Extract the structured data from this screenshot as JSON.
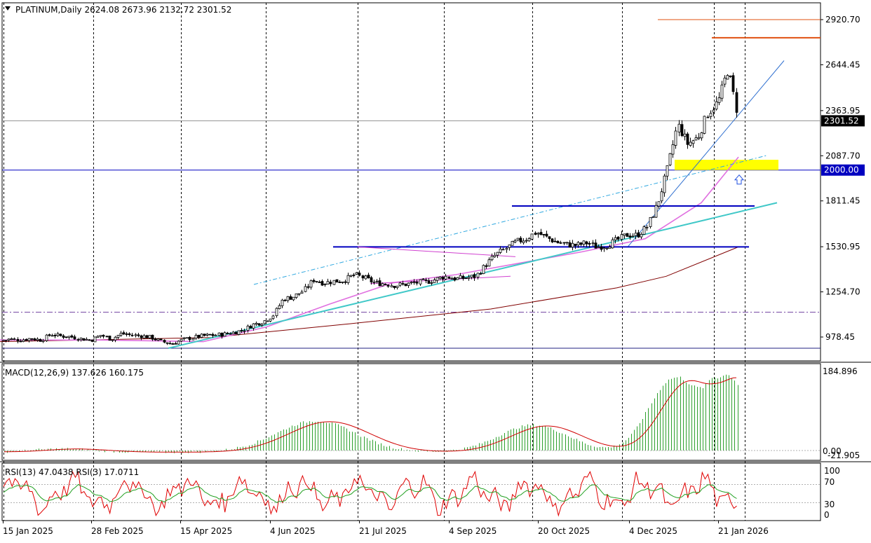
{
  "header": {
    "symbol_line": "PLATINUM,Daily  2624.08 2673.96 2132.72 2301.52"
  },
  "colors": {
    "bull": "#000000",
    "bear": "#000000",
    "sma_pink": "#e070e0",
    "sma_dark": "#800000",
    "cyan_trend": "#40c8c8",
    "blue_level": "#0000c0",
    "orange_level": "#e05010",
    "yellow_zone": "#ffff00",
    "macd_hist": "#2ea02e",
    "macd_signal": "#d00000",
    "rsi_fast": "#e00000",
    "rsi_slow": "#20a020"
  },
  "chart_data": [
    {
      "type": "candlestick",
      "title": "PLATINUM,Daily",
      "ohlc_last": {
        "open": 2624.08,
        "high": 2673.96,
        "low": 2132.72,
        "close": 2301.52
      },
      "y_ticks": [
        "2920.70",
        "2644.45",
        "2363.95",
        "2087.70",
        "1811.45",
        "1530.95",
        "1254.70",
        "978.45"
      ],
      "ylim": [
        910,
        2990
      ],
      "price_markers": [
        "2301.52",
        "2000.00"
      ],
      "x_ticks": [
        "15 Jan 2025",
        "28 Feb 2025",
        "15 Apr 2025",
        "4 Jun 2025",
        "21 Jul 2025",
        "4 Sep 2025",
        "20 Oct 2025",
        "4 Dec 2025",
        "21 Jan 2026"
      ],
      "horizontal_levels": [
        {
          "value": 2000.0,
          "label": "2000.00"
        },
        {
          "value": 2301.52,
          "label": "2301.52"
        },
        {
          "value": 1130.0,
          "label": ""
        },
        {
          "value": 910.0,
          "label": ""
        }
      ],
      "close_path": [
        [
          0,
          955
        ],
        [
          14,
          965
        ],
        [
          29,
          960
        ],
        [
          43,
          970
        ],
        [
          58,
          960
        ],
        [
          72,
          995
        ],
        [
          86,
          985
        ],
        [
          101,
          980
        ],
        [
          115,
          968
        ],
        [
          130,
          960
        ],
        [
          144,
          990
        ],
        [
          158,
          965
        ],
        [
          173,
          1000
        ],
        [
          187,
          990
        ],
        [
          202,
          985
        ],
        [
          216,
          975
        ],
        [
          230,
          950
        ],
        [
          245,
          938
        ],
        [
          259,
          960
        ],
        [
          274,
          975
        ],
        [
          288,
          985
        ],
        [
          303,
          990
        ],
        [
          317,
          995
        ],
        [
          331,
          1005
        ],
        [
          346,
          1020
        ],
        [
          360,
          1055
        ],
        [
          374,
          1070
        ],
        [
          389,
          1110
        ],
        [
          403,
          1210
        ],
        [
          418,
          1225
        ],
        [
          432,
          1260
        ],
        [
          447,
          1330
        ],
        [
          461,
          1310
        ],
        [
          476,
          1320
        ],
        [
          490,
          1325
        ],
        [
          505,
          1360
        ],
        [
          519,
          1340
        ],
        [
          534,
          1310
        ],
        [
          548,
          1305
        ],
        [
          562,
          1295
        ],
        [
          577,
          1300
        ],
        [
          591,
          1310
        ],
        [
          606,
          1315
        ],
        [
          620,
          1330
        ],
        [
          634,
          1350
        ],
        [
          649,
          1335
        ],
        [
          663,
          1340
        ],
        [
          678,
          1350
        ],
        [
          692,
          1420
        ],
        [
          706,
          1480
        ],
        [
          721,
          1520
        ],
        [
          735,
          1560
        ],
        [
          750,
          1580
        ],
        [
          764,
          1620
        ],
        [
          778,
          1590
        ],
        [
          793,
          1560
        ],
        [
          807,
          1545
        ],
        [
          822,
          1540
        ],
        [
          836,
          1555
        ],
        [
          850,
          1530
        ],
        [
          865,
          1540
        ],
        [
          879,
          1570
        ],
        [
          894,
          1605
        ],
        [
          908,
          1600
        ],
        [
          922,
          1650
        ],
        [
          937,
          1790
        ],
        [
          951,
          2000
        ],
        [
          966,
          2280
        ],
        [
          980,
          2160
        ],
        [
          995,
          2200
        ],
        [
          1009,
          2350
        ],
        [
          1024,
          2420
        ],
        [
          1038,
          2620
        ],
        [
          1053,
          2301.52
        ]
      ],
      "sma_pink": [
        [
          0,
          960
        ],
        [
          145,
          960
        ],
        [
          290,
          950
        ],
        [
          380,
          1040
        ],
        [
          470,
          1180
        ],
        [
          560,
          1310
        ],
        [
          650,
          1360
        ],
        [
          740,
          1430
        ],
        [
          830,
          1500
        ],
        [
          920,
          1580
        ],
        [
          1000,
          1800
        ],
        [
          1053,
          2080
        ]
      ],
      "sma_dark": [
        [
          0,
          950
        ],
        [
          300,
          975
        ],
        [
          500,
          1060
        ],
        [
          700,
          1150
        ],
        [
          880,
          1280
        ],
        [
          950,
          1350
        ],
        [
          1053,
          1530
        ]
      ],
      "cyan_trend": [
        [
          240,
          910
        ],
        [
          1108,
          1800
        ]
      ],
      "cyan_dashed": [
        [
          362,
          1300
        ],
        [
          1094,
          2090
        ]
      ],
      "blue_thin_trend": [
        [
          895,
          1530
        ],
        [
          1118,
          2670
        ]
      ],
      "blue_levels": [
        {
          "from": 475,
          "to": 1068,
          "value": 1530
        },
        {
          "from": 730,
          "to": 1076,
          "value": 1780
        }
      ],
      "orange_levels": [
        {
          "from": 938,
          "to": 1170,
          "value": 2920.7
        },
        {
          "from": 1015,
          "to": 1170,
          "value": 2810
        }
      ],
      "magenta_triangle": [
        [
          510,
          1530
        ],
        [
          735,
          1470
        ],
        [
          528,
          1305
        ],
        [
          728,
          1350
        ]
      ],
      "yellow_zone": {
        "from": 962,
        "to": 1110,
        "low": 2000,
        "high": 2063
      },
      "arrow_marker": {
        "x": 1054,
        "value": 1940
      }
    },
    {
      "type": "bar",
      "title": "MACD(12,26,9) 137.626 160.175",
      "y_ticks": [
        "184.896",
        "0.00",
        "-21.905"
      ],
      "ylim": [
        -21.905,
        210
      ],
      "macd_last": 137.626,
      "signal_last": 160.175
    },
    {
      "type": "line",
      "title": "RSI(13) 47.0438  RSI(3) 17.0711",
      "y_ticks": [
        "100",
        "70",
        "30",
        "0"
      ],
      "ylim": [
        0,
        100
      ],
      "rsi13_last": 47.0438,
      "rsi3_last": 17.0711
    }
  ]
}
